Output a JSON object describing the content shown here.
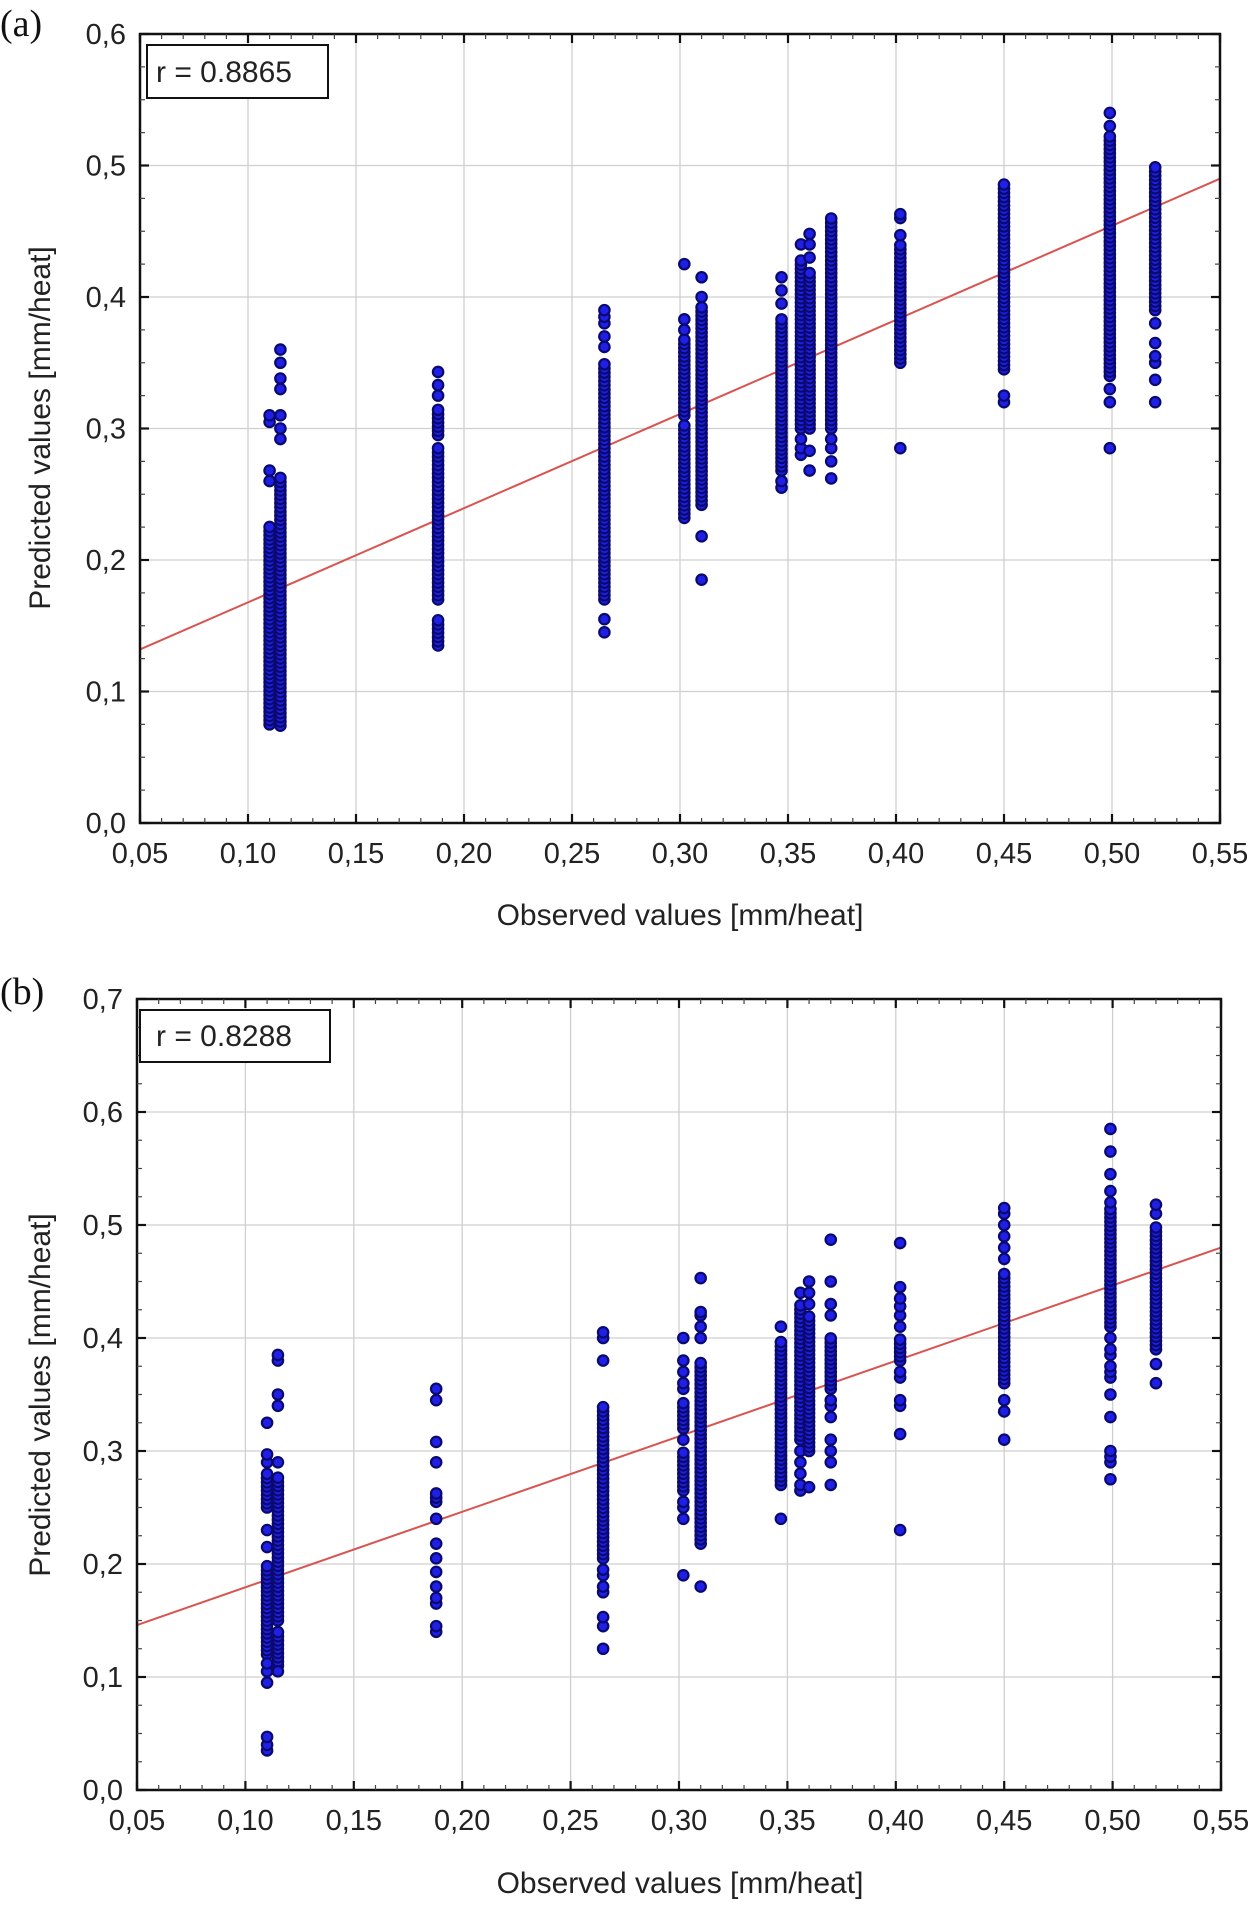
{
  "chart_data": [
    {
      "type": "scatter",
      "panel_label": "(a)",
      "title": "",
      "xlabel": "Observed values [mm/heat]",
      "ylabel": "Predicted values [mm/heat]",
      "xlim": [
        0.05,
        0.55
      ],
      "ylim": [
        0.0,
        0.6
      ],
      "x_ticks": [
        0.05,
        0.1,
        0.15,
        0.2,
        0.25,
        0.3,
        0.35,
        0.4,
        0.45,
        0.5,
        0.55
      ],
      "x_tick_labels": [
        "0,05",
        "0,10",
        "0,15",
        "0,20",
        "0,25",
        "0,30",
        "0,35",
        "0,40",
        "0,45",
        "0,50",
        "0,55"
      ],
      "y_ticks": [
        0.0,
        0.1,
        0.2,
        0.3,
        0.4,
        0.5,
        0.6
      ],
      "y_tick_labels": [
        "0,0",
        "0,1",
        "0,2",
        "0,3",
        "0,4",
        "0,5",
        "0,6"
      ],
      "grid": true,
      "annotation": "r = 0.8865",
      "annotation_placement": "top-left",
      "marker_color": "#1f1fe6",
      "marker_edge_color": "#0a0a6e",
      "fit_line_color": "#d9534f",
      "fit_line": {
        "x": [
          0.05,
          0.55
        ],
        "y": [
          0.132,
          0.49
        ]
      },
      "columns": [
        {
          "x": 0.11,
          "dense": [
            [
              0.075,
              0.228
            ]
          ],
          "points": [
            0.26,
            0.268,
            0.305,
            0.31
          ]
        },
        {
          "x": 0.115,
          "dense": [
            [
              0.074,
              0.265
            ]
          ],
          "points": [
            0.292,
            0.3,
            0.31,
            0.33,
            0.338,
            0.35,
            0.36
          ]
        },
        {
          "x": 0.188,
          "dense": [
            [
              0.135,
              0.155
            ],
            [
              0.17,
              0.285
            ],
            [
              0.295,
              0.315
            ]
          ],
          "points": [
            0.325,
            0.333,
            0.343
          ]
        },
        {
          "x": 0.265,
          "dense": [
            [
              0.17,
              0.35
            ]
          ],
          "points": [
            0.145,
            0.155,
            0.362,
            0.37,
            0.38,
            0.385,
            0.39
          ]
        },
        {
          "x": 0.302,
          "dense": [
            [
              0.232,
              0.305
            ],
            [
              0.31,
              0.37
            ]
          ],
          "points": [
            0.375,
            0.383,
            0.425
          ]
        },
        {
          "x": 0.31,
          "dense": [
            [
              0.242,
              0.395
            ]
          ],
          "points": [
            0.185,
            0.218,
            0.4,
            0.415
          ]
        },
        {
          "x": 0.347,
          "dense": [
            [
              0.268,
              0.385
            ]
          ],
          "points": [
            0.255,
            0.26,
            0.395,
            0.405,
            0.415
          ]
        },
        {
          "x": 0.356,
          "dense": [
            [
              0.3,
              0.43
            ]
          ],
          "points": [
            0.28,
            0.285,
            0.292,
            0.44
          ]
        },
        {
          "x": 0.36,
          "dense": [
            [
              0.3,
              0.42
            ]
          ],
          "points": [
            0.268,
            0.283,
            0.43,
            0.44,
            0.448
          ]
        },
        {
          "x": 0.37,
          "dense": [
            [
              0.3,
              0.46
            ]
          ],
          "points": [
            0.262,
            0.275,
            0.285,
            0.292
          ]
        },
        {
          "x": 0.402,
          "dense": [
            [
              0.35,
              0.44
            ]
          ],
          "points": [
            0.285,
            0.447,
            0.46,
            0.463
          ]
        },
        {
          "x": 0.45,
          "dense": [
            [
              0.345,
              0.488
            ]
          ],
          "points": [
            0.32,
            0.325
          ]
        },
        {
          "x": 0.499,
          "dense": [
            [
              0.34,
              0.525
            ]
          ],
          "points": [
            0.285,
            0.32,
            0.33,
            0.53,
            0.54
          ]
        },
        {
          "x": 0.52,
          "dense": [
            [
              0.39,
              0.5
            ]
          ],
          "points": [
            0.32,
            0.337,
            0.35,
            0.355,
            0.365,
            0.38
          ]
        }
      ]
    },
    {
      "type": "scatter",
      "panel_label": "(b)",
      "title": "",
      "xlabel": "Observed values [mm/heat]",
      "ylabel": "Predicted values [mm/heat]",
      "xlim": [
        0.05,
        0.55
      ],
      "ylim": [
        0.0,
        0.7
      ],
      "x_ticks": [
        0.05,
        0.1,
        0.15,
        0.2,
        0.25,
        0.3,
        0.35,
        0.4,
        0.45,
        0.5,
        0.55
      ],
      "x_tick_labels": [
        "0,05",
        "0,10",
        "0,15",
        "0,20",
        "0,25",
        "0,30",
        "0,35",
        "0,40",
        "0,45",
        "0,50",
        "0,55"
      ],
      "y_ticks": [
        0.0,
        0.1,
        0.2,
        0.3,
        0.4,
        0.5,
        0.6,
        0.7
      ],
      "y_tick_labels": [
        "0,0",
        "0,1",
        "0,2",
        "0,3",
        "0,4",
        "0,5",
        "0,6",
        "0,7"
      ],
      "grid": true,
      "annotation": "r = 0.8288",
      "annotation_placement": "top-left",
      "marker_color": "#1f1fe6",
      "marker_edge_color": "#0a0a6e",
      "fit_line_color": "#d9534f",
      "fit_line": {
        "x": [
          0.05,
          0.55
        ],
        "y": [
          0.146,
          0.48
        ]
      },
      "columns": [
        {
          "x": 0.11,
          "dense": [
            [
              0.12,
              0.2
            ],
            [
              0.25,
              0.28
            ]
          ],
          "points": [
            0.035,
            0.04,
            0.047,
            0.095,
            0.105,
            0.112,
            0.215,
            0.23,
            0.29,
            0.297,
            0.325
          ]
        },
        {
          "x": 0.115,
          "dense": [
            [
              0.11,
              0.14
            ],
            [
              0.15,
              0.28
            ]
          ],
          "points": [
            0.105,
            0.29,
            0.34,
            0.35,
            0.38,
            0.385
          ]
        },
        {
          "x": 0.188,
          "dense": [
            [
              0.255,
              0.265
            ]
          ],
          "points": [
            0.14,
            0.145,
            0.165,
            0.17,
            0.18,
            0.193,
            0.205,
            0.218,
            0.24,
            0.29,
            0.308,
            0.345,
            0.355
          ]
        },
        {
          "x": 0.265,
          "dense": [
            [
              0.205,
              0.34
            ]
          ],
          "points": [
            0.125,
            0.145,
            0.153,
            0.175,
            0.18,
            0.19,
            0.195,
            0.38,
            0.4,
            0.405
          ]
        },
        {
          "x": 0.302,
          "dense": [
            [
              0.265,
              0.3
            ],
            [
              0.32,
              0.345
            ]
          ],
          "points": [
            0.19,
            0.24,
            0.25,
            0.255,
            0.31,
            0.355,
            0.36,
            0.37,
            0.38,
            0.4
          ]
        },
        {
          "x": 0.31,
          "dense": [
            [
              0.218,
              0.38
            ]
          ],
          "points": [
            0.18,
            0.4,
            0.41,
            0.42,
            0.423,
            0.453
          ]
        },
        {
          "x": 0.347,
          "dense": [
            [
              0.27,
              0.4
            ]
          ],
          "points": [
            0.24,
            0.41
          ]
        },
        {
          "x": 0.356,
          "dense": [
            [
              0.31,
              0.43
            ]
          ],
          "points": [
            0.265,
            0.27,
            0.28,
            0.29,
            0.3,
            0.44
          ]
        },
        {
          "x": 0.36,
          "dense": [
            [
              0.3,
              0.42
            ]
          ],
          "points": [
            0.268,
            0.43,
            0.44,
            0.45
          ]
        },
        {
          "x": 0.37,
          "dense": [
            [
              0.355,
              0.4
            ]
          ],
          "points": [
            0.27,
            0.29,
            0.3,
            0.31,
            0.33,
            0.34,
            0.345,
            0.42,
            0.43,
            0.45,
            0.487
          ]
        },
        {
          "x": 0.402,
          "dense": [
            [
              0.38,
              0.4
            ]
          ],
          "points": [
            0.23,
            0.315,
            0.34,
            0.345,
            0.365,
            0.37,
            0.41,
            0.42,
            0.428,
            0.435,
            0.445,
            0.484
          ]
        },
        {
          "x": 0.45,
          "dense": [
            [
              0.36,
              0.46
            ]
          ],
          "points": [
            0.31,
            0.335,
            0.345,
            0.47,
            0.48,
            0.49,
            0.5,
            0.51,
            0.515
          ]
        },
        {
          "x": 0.499,
          "dense": [
            [
              0.41,
              0.515
            ]
          ],
          "points": [
            0.275,
            0.29,
            0.295,
            0.3,
            0.33,
            0.35,
            0.365,
            0.37,
            0.375,
            0.385,
            0.39,
            0.4,
            0.52,
            0.53,
            0.545,
            0.565,
            0.585
          ]
        },
        {
          "x": 0.52,
          "dense": [
            [
              0.39,
              0.5
            ]
          ],
          "points": [
            0.36,
            0.377,
            0.51,
            0.518
          ]
        }
      ]
    }
  ]
}
